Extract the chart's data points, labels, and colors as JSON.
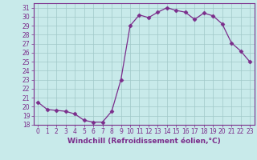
{
  "x": [
    0,
    1,
    2,
    3,
    4,
    5,
    6,
    7,
    8,
    9,
    10,
    11,
    12,
    13,
    14,
    15,
    16,
    17,
    18,
    19,
    20,
    21,
    22,
    23
  ],
  "y": [
    20.5,
    19.7,
    19.6,
    19.5,
    19.2,
    18.5,
    18.3,
    18.3,
    19.5,
    23.0,
    29.0,
    30.2,
    29.9,
    30.5,
    31.0,
    30.7,
    30.5,
    29.7,
    30.4,
    30.1,
    29.2,
    27.1,
    26.2,
    25.0
  ],
  "line_color": "#7B2D8B",
  "marker": "D",
  "marker_size": 2.5,
  "bg_color": "#c8eaea",
  "grid_color": "#a0c8c8",
  "xlabel": "Windchill (Refroidissement éolien,°C)",
  "ylim": [
    18,
    31.5
  ],
  "xlim": [
    -0.5,
    23.5
  ],
  "yticks": [
    18,
    19,
    20,
    21,
    22,
    23,
    24,
    25,
    26,
    27,
    28,
    29,
    30,
    31
  ],
  "xticks": [
    0,
    1,
    2,
    3,
    4,
    5,
    6,
    7,
    8,
    9,
    10,
    11,
    12,
    13,
    14,
    15,
    16,
    17,
    18,
    19,
    20,
    21,
    22,
    23
  ],
  "tick_fontsize": 5.5,
  "label_fontsize": 6.5,
  "label_color": "#7B2D8B",
  "linewidth": 0.9
}
